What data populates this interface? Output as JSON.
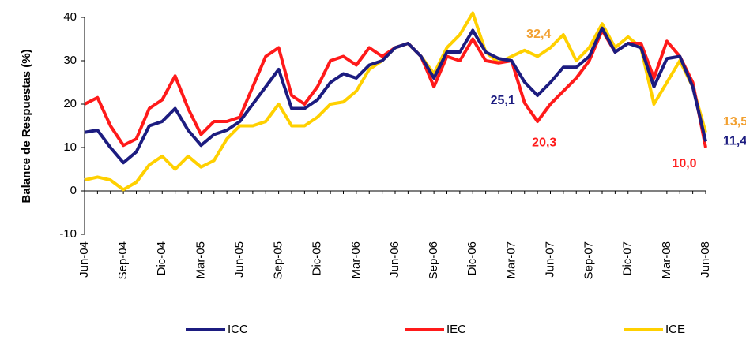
{
  "chart_data": {
    "type": "line",
    "ylabel": "Balance de Respuestas (%)",
    "categories": [
      "Jun-04",
      null,
      null,
      "Sep-04",
      null,
      null,
      "Dic-04",
      null,
      null,
      "Mar-05",
      null,
      null,
      "Jun-05",
      null,
      null,
      "Sep-05",
      null,
      null,
      "Dic-05",
      null,
      null,
      "Mar-06",
      null,
      null,
      "Jun-06",
      null,
      null,
      "Sep-06",
      null,
      null,
      "Dic-06",
      null,
      null,
      "Mar-07",
      null,
      null,
      "Jun-07",
      null,
      null,
      "Sep-07",
      null,
      null,
      "Dic-07",
      null,
      null,
      "Mar-08",
      null,
      null,
      "Jun-08"
    ],
    "ylim": [
      -10,
      40
    ],
    "yticks": [
      -10,
      0,
      10,
      20,
      30,
      40
    ],
    "series": [
      {
        "name": "ICC",
        "color": "#1c1c80",
        "label_color": "#1c1c80",
        "values": [
          13.5,
          14,
          10,
          6.5,
          9,
          15,
          16,
          19,
          14,
          10.5,
          13,
          14,
          16,
          20,
          24,
          28,
          19,
          19,
          21,
          25,
          27,
          26,
          29,
          30,
          33,
          34,
          31,
          26,
          32,
          32,
          37,
          32,
          30.5,
          30,
          25.1,
          22,
          25,
          28.5,
          28.5,
          31,
          37.5,
          32,
          34,
          33,
          24,
          30.5,
          31,
          24,
          11.4
        ],
        "value_labels": [
          null,
          null,
          null,
          null,
          null,
          null,
          null,
          null,
          null,
          null,
          null,
          null,
          null,
          null,
          null,
          null,
          null,
          null,
          null,
          null,
          null,
          null,
          null,
          null,
          null,
          null,
          null,
          null,
          null,
          null,
          null,
          null,
          null,
          null,
          "25,1",
          null,
          null,
          null,
          null,
          null,
          null,
          null,
          null,
          null,
          null,
          null,
          null,
          null,
          "11,4"
        ]
      },
      {
        "name": "IEC",
        "color": "#ff1a1a",
        "label_color": "#ff1a1a",
        "values": [
          20,
          21.5,
          15,
          10.5,
          12,
          19,
          21,
          26.5,
          19,
          13,
          16,
          16,
          17,
          24,
          31,
          33,
          22,
          20,
          24,
          30,
          31,
          29,
          33,
          31,
          33,
          34,
          31,
          24,
          31,
          30,
          35,
          30,
          29.5,
          30,
          20.3,
          16,
          20,
          23,
          26,
          30,
          37,
          32,
          34,
          34,
          26,
          34.5,
          31,
          25,
          10
        ],
        "value_labels": [
          null,
          null,
          null,
          null,
          null,
          null,
          null,
          null,
          null,
          null,
          null,
          null,
          null,
          null,
          null,
          null,
          null,
          null,
          null,
          null,
          null,
          null,
          null,
          null,
          null,
          null,
          null,
          null,
          null,
          null,
          null,
          null,
          null,
          null,
          "20,3",
          null,
          null,
          null,
          null,
          null,
          null,
          null,
          null,
          null,
          null,
          null,
          null,
          null,
          "10,0"
        ]
      },
      {
        "name": "ICE",
        "color": "#ffd000",
        "label_color": "#f2a030",
        "values": [
          2.5,
          3.2,
          2.5,
          0.3,
          2,
          6,
          8,
          5,
          8,
          5.5,
          7,
          12,
          15,
          15,
          16,
          20,
          15,
          15,
          17,
          20,
          20.5,
          23,
          28,
          30,
          33,
          34,
          31,
          27,
          33,
          36,
          41,
          32,
          29.5,
          31,
          32.4,
          31,
          33,
          36,
          30,
          33,
          38.5,
          33,
          35.5,
          33,
          20,
          25,
          30,
          24,
          13.5
        ],
        "value_labels": [
          null,
          null,
          null,
          null,
          null,
          null,
          null,
          null,
          null,
          null,
          null,
          null,
          null,
          null,
          null,
          null,
          null,
          null,
          null,
          null,
          null,
          null,
          null,
          null,
          null,
          null,
          null,
          null,
          null,
          null,
          null,
          null,
          null,
          null,
          "32,4",
          null,
          null,
          null,
          null,
          null,
          null,
          null,
          null,
          null,
          null,
          null,
          null,
          null,
          "13,5"
        ]
      }
    ]
  }
}
